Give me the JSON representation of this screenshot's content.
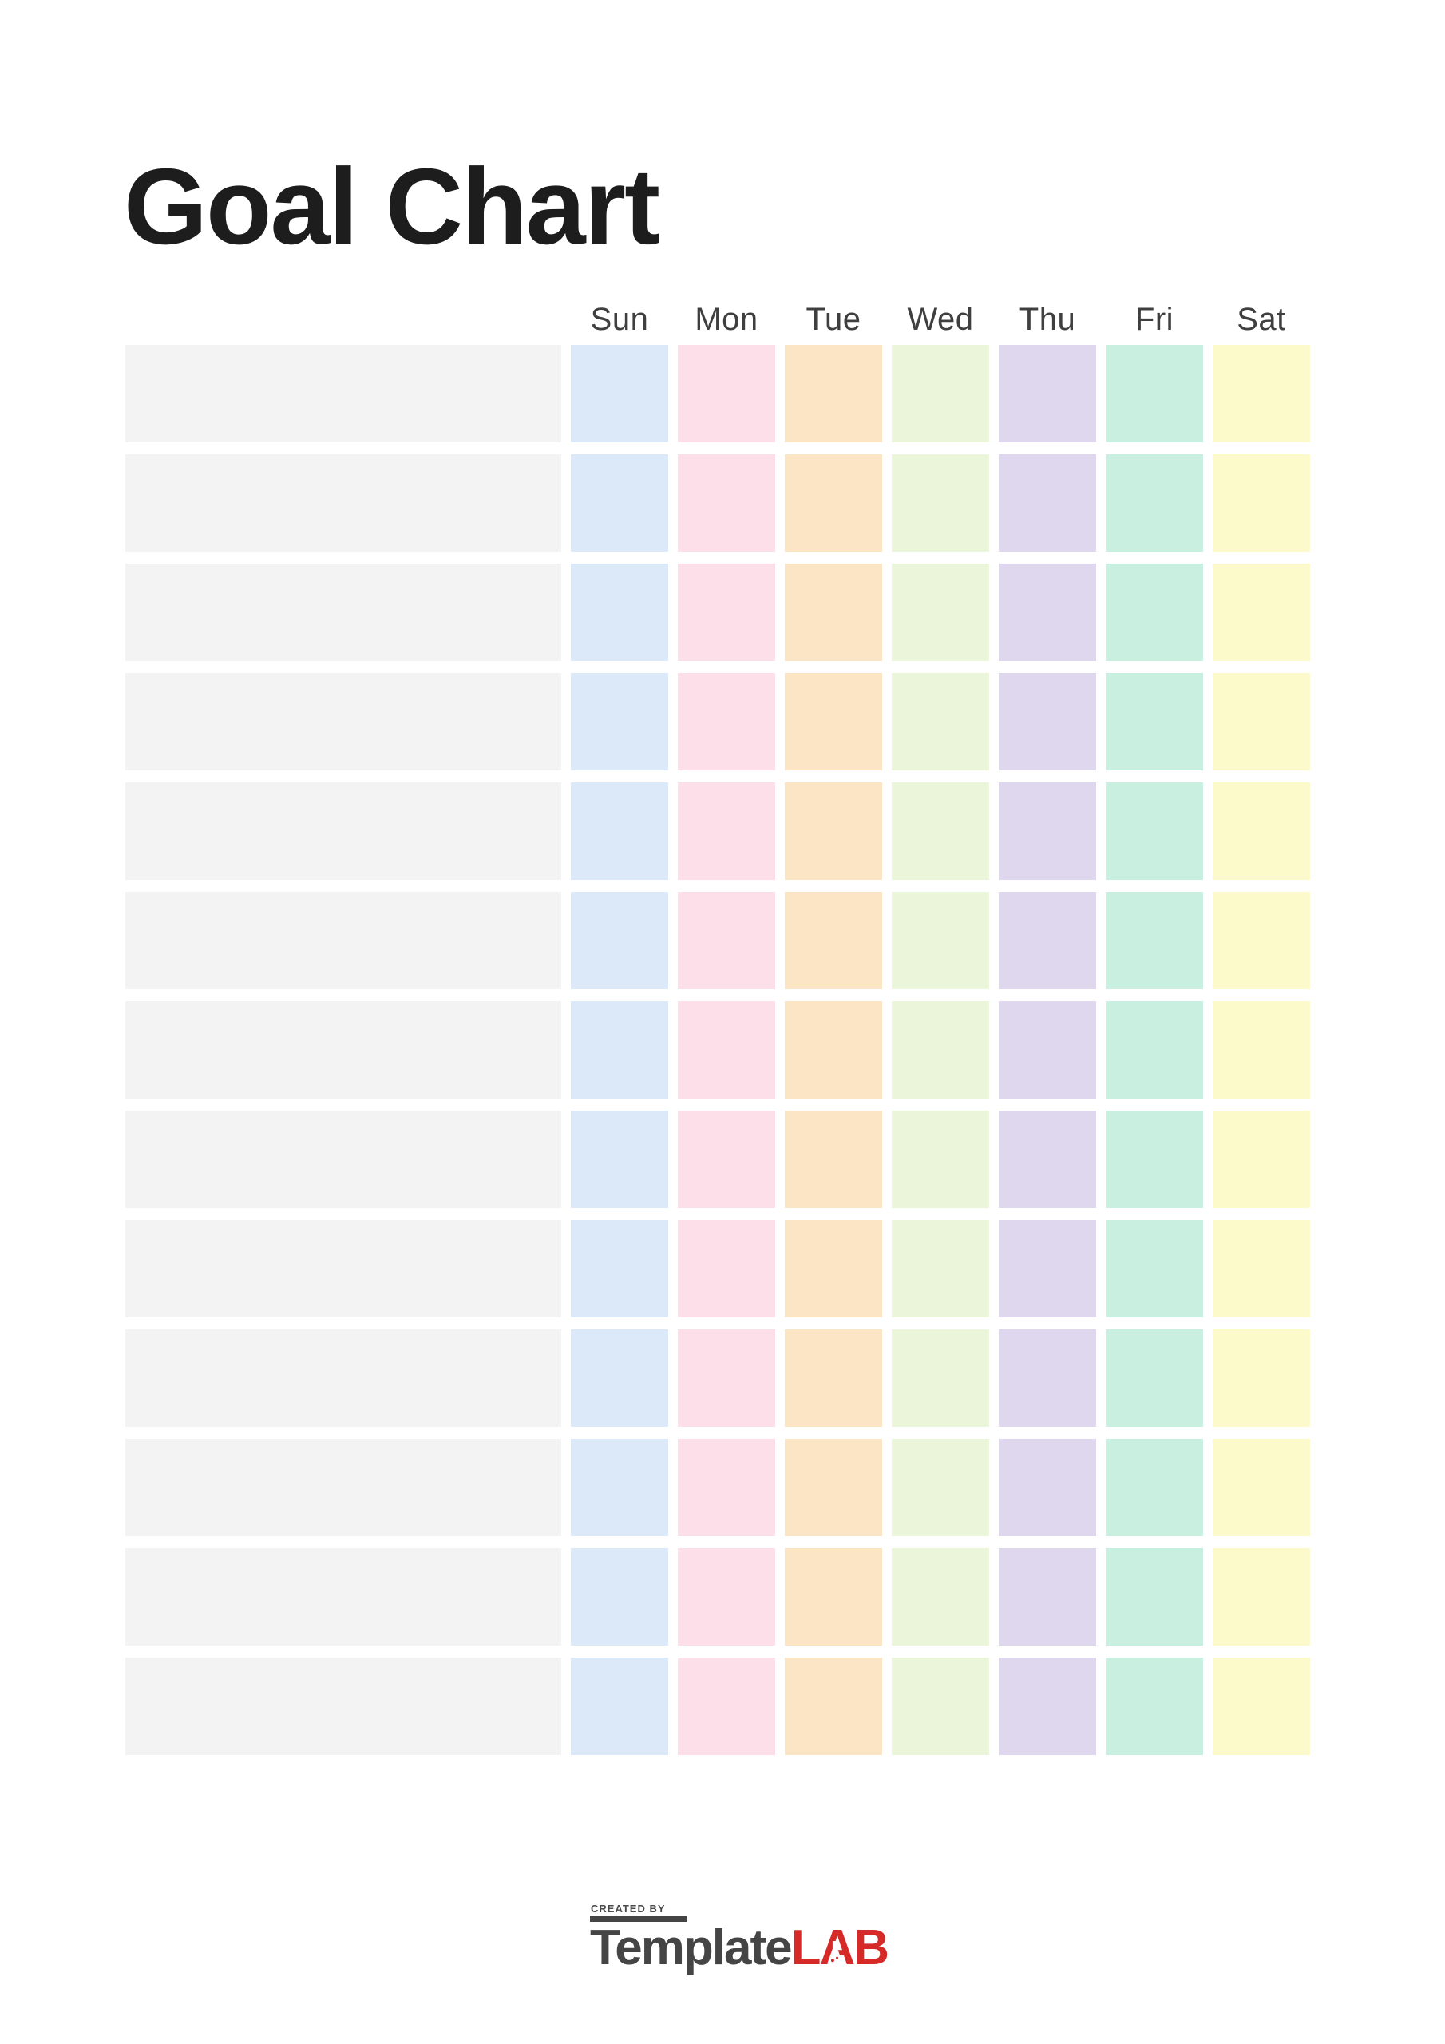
{
  "page": {
    "title": "Goal Chart"
  },
  "grid": {
    "day_headers": [
      "Sun",
      "Mon",
      "Tue",
      "Wed",
      "Thu",
      "Fri",
      "Sat"
    ],
    "day_keys": [
      "sun",
      "mon",
      "tue",
      "wed",
      "thu",
      "fri",
      "sat"
    ],
    "rows": [
      {
        "goal": "",
        "days": [
          "",
          "",
          "",
          "",
          "",
          "",
          ""
        ]
      },
      {
        "goal": "",
        "days": [
          "",
          "",
          "",
          "",
          "",
          "",
          ""
        ]
      },
      {
        "goal": "",
        "days": [
          "",
          "",
          "",
          "",
          "",
          "",
          ""
        ]
      },
      {
        "goal": "",
        "days": [
          "",
          "",
          "",
          "",
          "",
          "",
          ""
        ]
      },
      {
        "goal": "",
        "days": [
          "",
          "",
          "",
          "",
          "",
          "",
          ""
        ]
      },
      {
        "goal": "",
        "days": [
          "",
          "",
          "",
          "",
          "",
          "",
          ""
        ]
      },
      {
        "goal": "",
        "days": [
          "",
          "",
          "",
          "",
          "",
          "",
          ""
        ]
      },
      {
        "goal": "",
        "days": [
          "",
          "",
          "",
          "",
          "",
          "",
          ""
        ]
      },
      {
        "goal": "",
        "days": [
          "",
          "",
          "",
          "",
          "",
          "",
          ""
        ]
      },
      {
        "goal": "",
        "days": [
          "",
          "",
          "",
          "",
          "",
          "",
          ""
        ]
      },
      {
        "goal": "",
        "days": [
          "",
          "",
          "",
          "",
          "",
          "",
          ""
        ]
      },
      {
        "goal": "",
        "days": [
          "",
          "",
          "",
          "",
          "",
          "",
          ""
        ]
      },
      {
        "goal": "",
        "days": [
          "",
          "",
          "",
          "",
          "",
          "",
          ""
        ]
      }
    ]
  },
  "colors": {
    "goal_cell_bg": "#f3f3f3",
    "day_column_bgs": [
      "#dbe9f8",
      "#fcdfe9",
      "#fce5c5",
      "#eaf5da",
      "#ded7ee",
      "#c9efe1",
      "#fcf9cb"
    ],
    "title_text": "#1d1d1d",
    "header_text": "#3f3f3f",
    "logo_dark": "#454545",
    "logo_red": "#d62a28"
  },
  "footer": {
    "created_by": "CREATED BY",
    "brand_dark": "Template",
    "brand_accent": "LAB"
  }
}
